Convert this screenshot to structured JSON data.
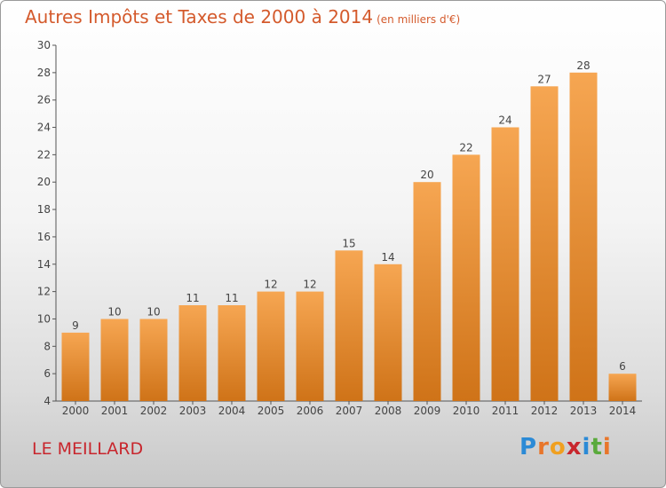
{
  "header": {
    "title": "Autres Impôts et Taxes de 2000 à 2014",
    "subtitle": "(en milliers d'€)"
  },
  "footer": {
    "place": "LE MEILLARD",
    "brand_letters": [
      "P",
      "r",
      "o",
      "x",
      "i",
      "t",
      "i"
    ],
    "brand_colors": [
      "#2b8ad6",
      "#e8762b",
      "#f0a020",
      "#c8262d",
      "#2b8ad6",
      "#5aaa3c",
      "#e8762b"
    ]
  },
  "colors": {
    "bar_light": "#f6a652",
    "bar_dark": "#cf7318",
    "axis": "#555555"
  },
  "chart_data": {
    "type": "bar",
    "categories": [
      "2000",
      "2001",
      "2002",
      "2003",
      "2004",
      "2005",
      "2006",
      "2007",
      "2008",
      "2009",
      "2010",
      "2011",
      "2012",
      "2013",
      "2014"
    ],
    "values": [
      9,
      10,
      10,
      11,
      11,
      12,
      12,
      15,
      14,
      20,
      22,
      24,
      27,
      28,
      6
    ],
    "title": "Autres Impôts et Taxes de 2000 à 2014",
    "subtitle": "(en milliers d'€)",
    "ylim": [
      4,
      30
    ],
    "yticks": [
      4,
      6,
      8,
      10,
      12,
      14,
      16,
      18,
      20,
      22,
      24,
      26,
      28,
      30
    ],
    "grid": false,
    "data_labels": true
  }
}
